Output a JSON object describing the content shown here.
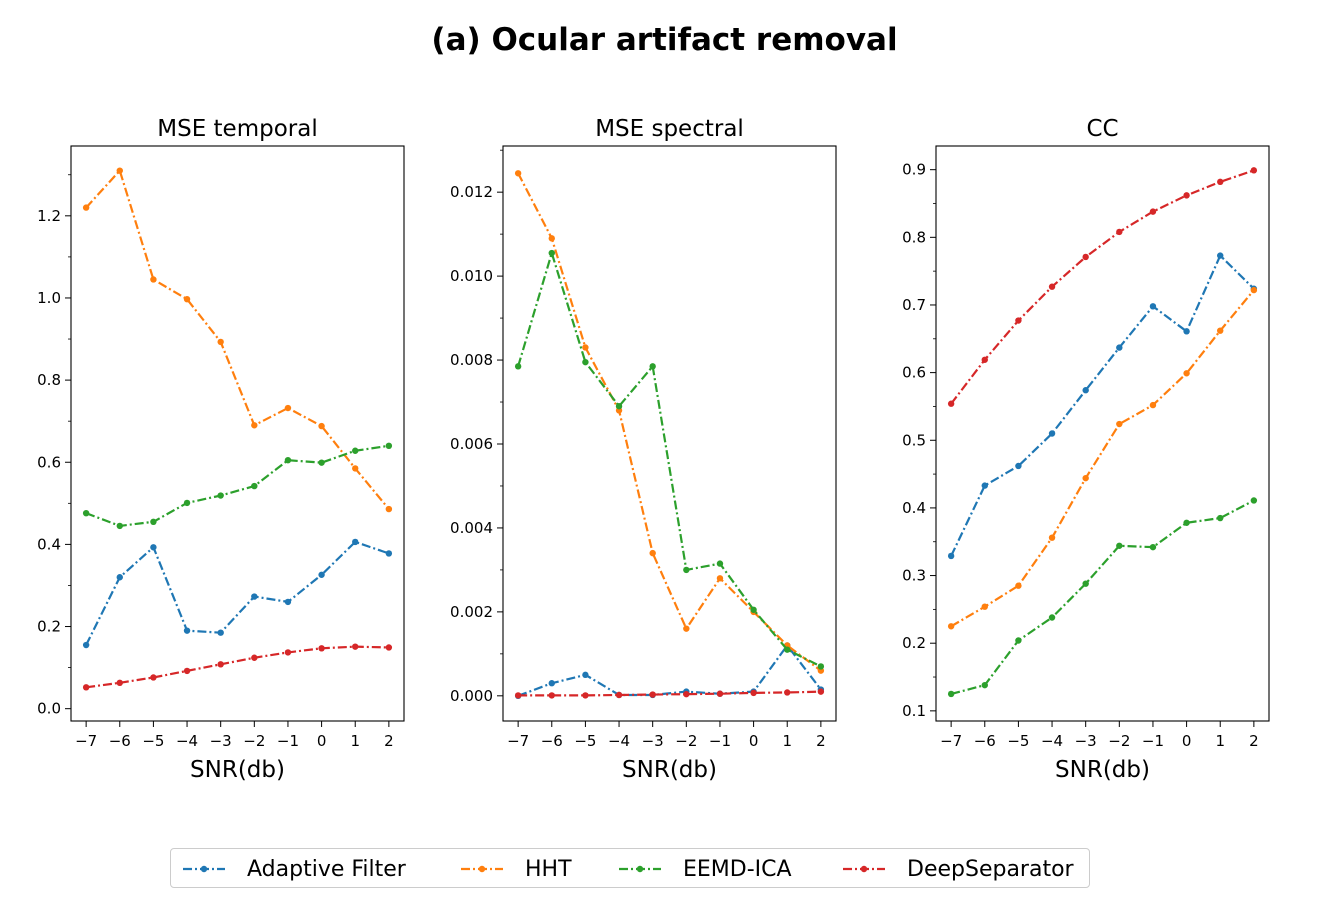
{
  "figure": {
    "title": "(a) Ocular artifact removal"
  },
  "legend": {
    "entries": [
      {
        "name": "Adaptive Filter",
        "color": "#1f77b4"
      },
      {
        "name": "HHT",
        "color": "#ff7f0e"
      },
      {
        "name": "EEMD-ICA",
        "color": "#2ca02c"
      },
      {
        "name": "DeepSeparator",
        "color": "#d62728"
      }
    ]
  },
  "chart_data": [
    {
      "type": "line",
      "title": "MSE temporal",
      "xlabel": "SNR(db)",
      "ylabel": "",
      "x": [
        -7,
        -6,
        -5,
        -4,
        -3,
        -2,
        -1,
        0,
        1,
        2
      ],
      "xticks": [
        "−7",
        "−6",
        "−5",
        "−4",
        "−3",
        "−2",
        "−1",
        "0",
        "1",
        "2"
      ],
      "yticks": [
        "0.0",
        "0.2",
        "0.4",
        "0.6",
        "0.8",
        "1.0",
        "1.2"
      ],
      "ytick_values": [
        0.0,
        0.2,
        0.4,
        0.6,
        0.8,
        1.0,
        1.2
      ],
      "ylim": [
        -0.03,
        1.37
      ],
      "series": [
        {
          "name": "Adaptive Filter",
          "color": "#1f77b4",
          "values": [
            0.155,
            0.32,
            0.393,
            0.19,
            0.185,
            0.273,
            0.26,
            0.326,
            0.406,
            0.378
          ]
        },
        {
          "name": "HHT",
          "color": "#ff7f0e",
          "values": [
            1.22,
            1.31,
            1.045,
            0.997,
            0.893,
            0.69,
            0.732,
            0.688,
            0.585,
            0.486
          ]
        },
        {
          "name": "EEMD-ICA",
          "color": "#2ca02c",
          "values": [
            0.476,
            0.445,
            0.455,
            0.501,
            0.519,
            0.542,
            0.605,
            0.599,
            0.628,
            0.64
          ]
        },
        {
          "name": "DeepSeparator",
          "color": "#d62728",
          "values": [
            0.052,
            0.063,
            0.076,
            0.092,
            0.108,
            0.124,
            0.137,
            0.147,
            0.151,
            0.149
          ]
        }
      ]
    },
    {
      "type": "line",
      "title": "MSE spectral",
      "xlabel": "SNR(db)",
      "ylabel": "",
      "x": [
        -7,
        -6,
        -5,
        -4,
        -3,
        -2,
        -1,
        0,
        1,
        2
      ],
      "xticks": [
        "−7",
        "−6",
        "−5",
        "−4",
        "−3",
        "−2",
        "−1",
        "0",
        "1",
        "2"
      ],
      "yticks": [
        "0.000",
        "0.002",
        "0.004",
        "0.006",
        "0.008",
        "0.010",
        "0.012"
      ],
      "ytick_values": [
        0.0,
        0.002,
        0.004,
        0.006,
        0.008,
        0.01,
        0.012
      ],
      "ylim": [
        -0.0006,
        0.0131
      ],
      "series": [
        {
          "name": "Adaptive Filter",
          "color": "#1f77b4",
          "values": [
            0.0,
            0.0003,
            0.0005,
            2e-05,
            2e-05,
            0.0001,
            5e-05,
            0.0001,
            0.0012,
            0.00015
          ]
        },
        {
          "name": "HHT",
          "color": "#ff7f0e",
          "values": [
            0.01245,
            0.0109,
            0.0083,
            0.0068,
            0.0034,
            0.0016,
            0.0028,
            0.002,
            0.0012,
            0.0006
          ]
        },
        {
          "name": "EEMD-ICA",
          "color": "#2ca02c",
          "values": [
            0.00785,
            0.01055,
            0.00795,
            0.0069,
            0.00785,
            0.003,
            0.00315,
            0.00205,
            0.0011,
            0.0007
          ]
        },
        {
          "name": "DeepSeparator",
          "color": "#d62728",
          "values": [
            1e-05,
            1e-05,
            1e-05,
            2e-05,
            3e-05,
            4e-05,
            5e-05,
            7e-05,
            8e-05,
            0.0001
          ]
        }
      ]
    },
    {
      "type": "line",
      "title": "CC",
      "xlabel": "SNR(db)",
      "ylabel": "",
      "x": [
        -7,
        -6,
        -5,
        -4,
        -3,
        -2,
        -1,
        0,
        1,
        2
      ],
      "xticks": [
        "−7",
        "−6",
        "−5",
        "−4",
        "−3",
        "−2",
        "−1",
        "0",
        "1",
        "2"
      ],
      "yticks": [
        "0.1",
        "0.2",
        "0.3",
        "0.4",
        "0.5",
        "0.6",
        "0.7",
        "0.8",
        "0.9"
      ],
      "ytick_values": [
        0.1,
        0.2,
        0.3,
        0.4,
        0.5,
        0.6,
        0.7,
        0.8,
        0.9
      ],
      "ylim": [
        0.085,
        0.935
      ],
      "series": [
        {
          "name": "Adaptive Filter",
          "color": "#1f77b4",
          "values": [
            0.329,
            0.433,
            0.462,
            0.51,
            0.574,
            0.637,
            0.698,
            0.661,
            0.773,
            0.724
          ]
        },
        {
          "name": "HHT",
          "color": "#ff7f0e",
          "values": [
            0.225,
            0.254,
            0.285,
            0.356,
            0.444,
            0.524,
            0.552,
            0.599,
            0.662,
            0.722
          ]
        },
        {
          "name": "EEMD-ICA",
          "color": "#2ca02c",
          "values": [
            0.125,
            0.138,
            0.204,
            0.238,
            0.288,
            0.344,
            0.342,
            0.378,
            0.385,
            0.411
          ]
        },
        {
          "name": "DeepSeparator",
          "color": "#d62728",
          "values": [
            0.554,
            0.619,
            0.677,
            0.727,
            0.771,
            0.808,
            0.838,
            0.862,
            0.882,
            0.899
          ]
        }
      ]
    }
  ]
}
